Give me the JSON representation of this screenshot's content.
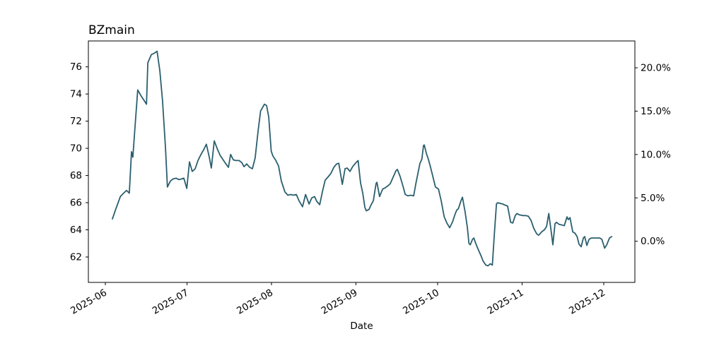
{
  "title": "BZmain",
  "axes": {
    "xlabel": "Date",
    "left_tick_labels": [
      "62",
      "64",
      "66",
      "68",
      "70",
      "72",
      "74",
      "76"
    ],
    "right_tick_labels": [
      "0.0%",
      "5.0%",
      "10.0%",
      "15.0%",
      "20.0%"
    ],
    "x_tick_labels": [
      "2025-06",
      "2025-07",
      "2025-08",
      "2025-09",
      "2025-10",
      "2025-11",
      "2025-12"
    ]
  },
  "colors": {
    "line": "#2b5f6e",
    "axis": "#000000",
    "text": "#000000",
    "background": "#ffffff"
  },
  "chart_data": {
    "type": "line",
    "title": "BZmain",
    "xlabel": "Date",
    "x_unit": "days since 2025-06-01",
    "x_ticks_days": [
      0,
      30,
      61,
      92,
      122,
      153,
      183
    ],
    "x_tick_labels": [
      "2025-06",
      "2025-07",
      "2025-08",
      "2025-09",
      "2025-10",
      "2025-11",
      "2025-12"
    ],
    "left_axis": {
      "ticks": [
        62,
        64,
        66,
        68,
        70,
        72,
        74,
        76
      ],
      "range": [
        60.1,
        77.9
      ]
    },
    "right_axis": {
      "ticks_pct": [
        0,
        5,
        10,
        15,
        20
      ],
      "labels": [
        "0.0%",
        "5.0%",
        "10.0%",
        "15.0%",
        "20.0%"
      ]
    },
    "legend": "none",
    "grid": false,
    "line_color": "#2b5f6e",
    "points": [
      [
        2.6,
        64.8
      ],
      [
        3.6,
        65.4
      ],
      [
        4.7,
        66.0
      ],
      [
        5.5,
        66.45
      ],
      [
        6.7,
        66.7
      ],
      [
        7.8,
        66.9
      ],
      [
        8.8,
        66.7
      ],
      [
        9.6,
        69.75
      ],
      [
        10.1,
        69.35
      ],
      [
        10.9,
        71.6
      ],
      [
        11.9,
        74.3
      ],
      [
        13.0,
        73.9
      ],
      [
        14.0,
        73.6
      ],
      [
        15.1,
        73.25
      ],
      [
        15.6,
        76.3
      ],
      [
        16.9,
        76.9
      ],
      [
        17.9,
        77.0
      ],
      [
        19.0,
        77.15
      ],
      [
        20.0,
        75.7
      ],
      [
        21.0,
        73.5
      ],
      [
        22.1,
        70.0
      ],
      [
        22.8,
        67.15
      ],
      [
        23.9,
        67.6
      ],
      [
        24.9,
        67.75
      ],
      [
        26.0,
        67.8
      ],
      [
        27.0,
        67.7
      ],
      [
        28.0,
        67.75
      ],
      [
        28.8,
        67.8
      ],
      [
        29.9,
        67.05
      ],
      [
        30.9,
        69.0
      ],
      [
        31.9,
        68.3
      ],
      [
        33.0,
        68.5
      ],
      [
        34.0,
        69.1
      ],
      [
        35.0,
        69.5
      ],
      [
        36.1,
        69.9
      ],
      [
        37.1,
        70.3
      ],
      [
        38.2,
        69.3
      ],
      [
        38.9,
        68.55
      ],
      [
        40.0,
        70.55
      ],
      [
        41.0,
        70.0
      ],
      [
        42.1,
        69.5
      ],
      [
        43.1,
        69.2
      ],
      [
        44.1,
        68.9
      ],
      [
        45.2,
        68.6
      ],
      [
        46.0,
        69.55
      ],
      [
        47.0,
        69.15
      ],
      [
        48.0,
        69.1
      ],
      [
        49.1,
        69.1
      ],
      [
        50.1,
        68.95
      ],
      [
        50.9,
        68.65
      ],
      [
        51.9,
        68.85
      ],
      [
        53.0,
        68.6
      ],
      [
        54.0,
        68.5
      ],
      [
        55.0,
        69.3
      ],
      [
        56.1,
        71.3
      ],
      [
        57.0,
        72.75
      ],
      [
        57.7,
        73.0
      ],
      [
        58.4,
        73.25
      ],
      [
        59.2,
        73.15
      ],
      [
        60.0,
        72.3
      ],
      [
        60.9,
        69.8
      ],
      [
        61.5,
        69.45
      ],
      [
        62.6,
        69.1
      ],
      [
        63.6,
        68.7
      ],
      [
        64.6,
        67.6
      ],
      [
        65.9,
        66.8
      ],
      [
        67.0,
        66.55
      ],
      [
        68.0,
        66.6
      ],
      [
        69.0,
        66.55
      ],
      [
        70.1,
        66.6
      ],
      [
        71.1,
        66.15
      ],
      [
        72.4,
        65.7
      ],
      [
        73.5,
        66.6
      ],
      [
        74.8,
        65.9
      ],
      [
        75.8,
        66.35
      ],
      [
        76.8,
        66.45
      ],
      [
        77.6,
        66.1
      ],
      [
        78.7,
        65.85
      ],
      [
        79.7,
        66.8
      ],
      [
        80.7,
        67.65
      ],
      [
        81.8,
        67.9
      ],
      [
        82.8,
        68.15
      ],
      [
        83.9,
        68.6
      ],
      [
        84.9,
        68.85
      ],
      [
        85.7,
        68.9
      ],
      [
        87.0,
        67.35
      ],
      [
        88.0,
        68.5
      ],
      [
        88.8,
        68.55
      ],
      [
        89.8,
        68.3
      ],
      [
        90.8,
        68.65
      ],
      [
        91.8,
        68.9
      ],
      [
        92.8,
        69.1
      ],
      [
        93.7,
        67.45
      ],
      [
        94.5,
        66.7
      ],
      [
        95.3,
        65.65
      ],
      [
        95.8,
        65.4
      ],
      [
        96.8,
        65.5
      ],
      [
        97.6,
        65.85
      ],
      [
        98.4,
        66.15
      ],
      [
        99.4,
        67.4
      ],
      [
        99.7,
        67.5
      ],
      [
        100.7,
        66.45
      ],
      [
        101.8,
        67.0
      ],
      [
        102.8,
        67.1
      ],
      [
        103.8,
        67.25
      ],
      [
        104.6,
        67.4
      ],
      [
        105.6,
        67.85
      ],
      [
        106.7,
        68.35
      ],
      [
        107.2,
        68.45
      ],
      [
        108.2,
        67.95
      ],
      [
        109.3,
        67.2
      ],
      [
        110.1,
        66.6
      ],
      [
        111.1,
        66.5
      ],
      [
        112.1,
        66.55
      ],
      [
        113.2,
        66.5
      ],
      [
        114.0,
        67.4
      ],
      [
        114.8,
        68.2
      ],
      [
        115.5,
        68.9
      ],
      [
        116.2,
        69.2
      ],
      [
        116.8,
        70.2
      ],
      [
        117.1,
        70.25
      ],
      [
        117.9,
        69.6
      ],
      [
        118.6,
        69.2
      ],
      [
        119.4,
        68.6
      ],
      [
        120.2,
        67.95
      ],
      [
        121.2,
        67.15
      ],
      [
        122.3,
        67.0
      ],
      [
        123.3,
        66.15
      ],
      [
        124.4,
        64.95
      ],
      [
        125.4,
        64.5
      ],
      [
        126.4,
        64.15
      ],
      [
        127.5,
        64.6
      ],
      [
        128.3,
        65.1
      ],
      [
        129.0,
        65.45
      ],
      [
        129.6,
        65.55
      ],
      [
        130.6,
        66.15
      ],
      [
        131.1,
        66.4
      ],
      [
        132.1,
        65.3
      ],
      [
        132.9,
        64.2
      ],
      [
        133.5,
        63.0
      ],
      [
        134.0,
        62.9
      ],
      [
        134.8,
        63.3
      ],
      [
        135.3,
        63.4
      ],
      [
        136.0,
        63.0
      ],
      [
        136.8,
        62.6
      ],
      [
        137.9,
        62.1
      ],
      [
        138.7,
        61.7
      ],
      [
        139.7,
        61.4
      ],
      [
        140.5,
        61.35
      ],
      [
        141.3,
        61.5
      ],
      [
        142.1,
        61.4
      ],
      [
        142.9,
        63.9
      ],
      [
        143.6,
        65.9
      ],
      [
        144.0,
        66.0
      ],
      [
        144.9,
        65.95
      ],
      [
        145.9,
        65.9
      ],
      [
        147.0,
        65.8
      ],
      [
        147.7,
        65.75
      ],
      [
        148.8,
        64.55
      ],
      [
        149.6,
        64.5
      ],
      [
        150.5,
        65.05
      ],
      [
        151.1,
        65.2
      ],
      [
        152.1,
        65.1
      ],
      [
        153.2,
        65.05
      ],
      [
        154.2,
        65.05
      ],
      [
        155.3,
        65.0
      ],
      [
        156.3,
        64.7
      ],
      [
        157.3,
        64.1
      ],
      [
        158.4,
        63.7
      ],
      [
        159.1,
        63.6
      ],
      [
        160.2,
        63.85
      ],
      [
        161.2,
        64.0
      ],
      [
        162.0,
        64.25
      ],
      [
        162.8,
        65.2
      ],
      [
        163.6,
        64.0
      ],
      [
        164.3,
        62.9
      ],
      [
        165.1,
        64.45
      ],
      [
        165.6,
        64.55
      ],
      [
        166.6,
        64.4
      ],
      [
        167.7,
        64.35
      ],
      [
        168.5,
        64.3
      ],
      [
        169.5,
        64.95
      ],
      [
        170.0,
        64.75
      ],
      [
        170.6,
        64.9
      ],
      [
        171.6,
        63.85
      ],
      [
        172.4,
        63.75
      ],
      [
        173.2,
        63.5
      ],
      [
        173.9,
        62.95
      ],
      [
        174.7,
        62.75
      ],
      [
        175.5,
        63.4
      ],
      [
        176.0,
        63.5
      ],
      [
        176.8,
        62.85
      ],
      [
        177.6,
        63.3
      ],
      [
        178.4,
        63.4
      ],
      [
        179.4,
        63.4
      ],
      [
        180.5,
        63.4
      ],
      [
        181.5,
        63.4
      ],
      [
        182.3,
        63.3
      ],
      [
        183.3,
        62.65
      ],
      [
        184.1,
        62.9
      ],
      [
        185.1,
        63.4
      ],
      [
        185.9,
        63.5
      ]
    ]
  }
}
